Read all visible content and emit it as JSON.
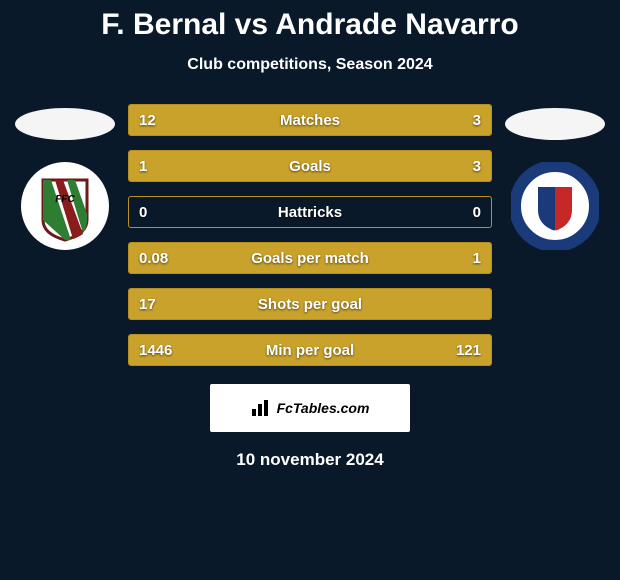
{
  "title": "F. Bernal vs Andrade Navarro",
  "subtitle": "Club competitions, Season 2024",
  "date": "10 november 2024",
  "footer_label": "FcTables.com",
  "colors": {
    "background": "#0a1929",
    "text": "#ffffff",
    "bar_border": "#b8901f",
    "bar_fill": "#c9a22b",
    "oval_left": "#f5f5f5",
    "oval_right": "#f5f5f5",
    "footer_bg": "#ffffff"
  },
  "left_badge": {
    "bg": "#ffffff",
    "shield_stroke": "#6b1a1a",
    "stripe_a": "#2e7d32",
    "stripe_b": "#8a1c1c",
    "text_color": "#000000"
  },
  "right_badge": {
    "bg": "#ffffff",
    "ring": "#1a3a7a",
    "ring_text": "#ffffff",
    "left_half": "#1a3a7a",
    "right_half": "#c62828"
  },
  "stats": [
    {
      "label": "Matches",
      "left_val": "12",
      "right_val": "3",
      "left_pct": 80,
      "right_pct": 20
    },
    {
      "label": "Goals",
      "left_val": "1",
      "right_val": "3",
      "left_pct": 25,
      "right_pct": 75
    },
    {
      "label": "Hattricks",
      "left_val": "0",
      "right_val": "0",
      "left_pct": 0,
      "right_pct": 0
    },
    {
      "label": "Goals per match",
      "left_val": "0.08",
      "right_val": "1",
      "left_pct": 7.5,
      "right_pct": 92.5
    },
    {
      "label": "Shots per goal",
      "left_val": "17",
      "right_val": "",
      "left_pct": 100,
      "right_pct": 0
    },
    {
      "label": "Min per goal",
      "left_val": "1446",
      "right_val": "121",
      "left_pct": 92.3,
      "right_pct": 7.7
    }
  ]
}
